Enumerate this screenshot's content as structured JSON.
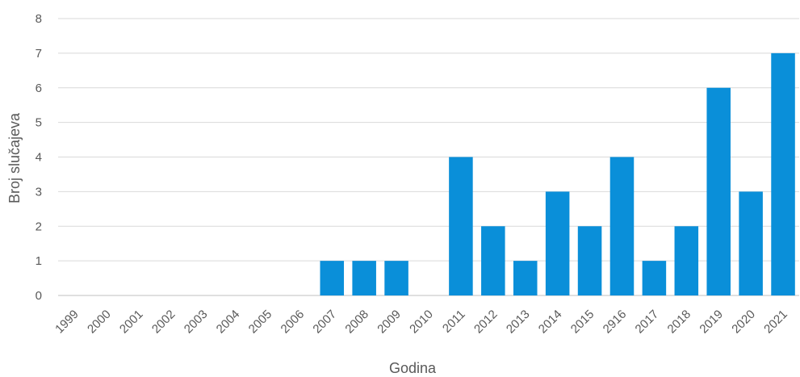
{
  "chart_data": {
    "type": "bar",
    "title": "",
    "xlabel": "Godina",
    "ylabel": "Broj slučajeva",
    "categories": [
      "1999",
      "2000",
      "2001",
      "2002",
      "2003",
      "2004",
      "2005",
      "2006",
      "2007",
      "2008",
      "2009",
      "2010",
      "2011",
      "2012",
      "2013",
      "2014",
      "2015",
      "2916",
      "2017",
      "2018",
      "2019",
      "2020",
      "2021"
    ],
    "values": [
      0,
      0,
      0,
      0,
      0,
      0,
      0,
      0,
      1,
      1,
      1,
      0,
      4,
      2,
      1,
      3,
      2,
      4,
      1,
      2,
      6,
      3,
      7
    ],
    "ylim": [
      0,
      8
    ],
    "yticks": [
      "0",
      "1",
      "2",
      "3",
      "4",
      "5",
      "6",
      "7",
      "8"
    ],
    "grid": true,
    "legend": "none",
    "colors": {
      "bar": "#0a8fd9",
      "grid": "#d9d9d9",
      "axis": "#bfbfbf",
      "text": "#595959"
    }
  }
}
